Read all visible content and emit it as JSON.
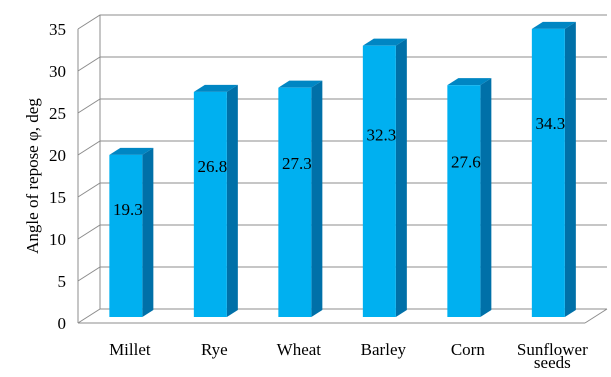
{
  "chart_data": {
    "type": "bar",
    "categories": [
      [
        "Millet"
      ],
      [
        "Rye"
      ],
      [
        "Wheat"
      ],
      [
        "Barley"
      ],
      [
        "Corn"
      ],
      [
        "Sunflower",
        "seeds"
      ]
    ],
    "values": [
      19.3,
      26.8,
      27.3,
      32.3,
      27.6,
      34.3
    ],
    "data_labels": [
      "19.3",
      "26.8",
      "27.3",
      "32.3",
      "27.6",
      "34.3"
    ],
    "title": "",
    "xlabel": "",
    "ylabel": "Angle of repose φ, deg",
    "ylim": [
      0,
      35
    ],
    "yticks": [
      0,
      5,
      10,
      15,
      20,
      25,
      30,
      35
    ],
    "grid": true,
    "style": "3d-column",
    "colors": {
      "bar_front": "#00b0f0",
      "bar_side": "#0070a8",
      "bar_top": "#0086c3",
      "grid": "#8c8c8c",
      "text": "#000000"
    }
  }
}
